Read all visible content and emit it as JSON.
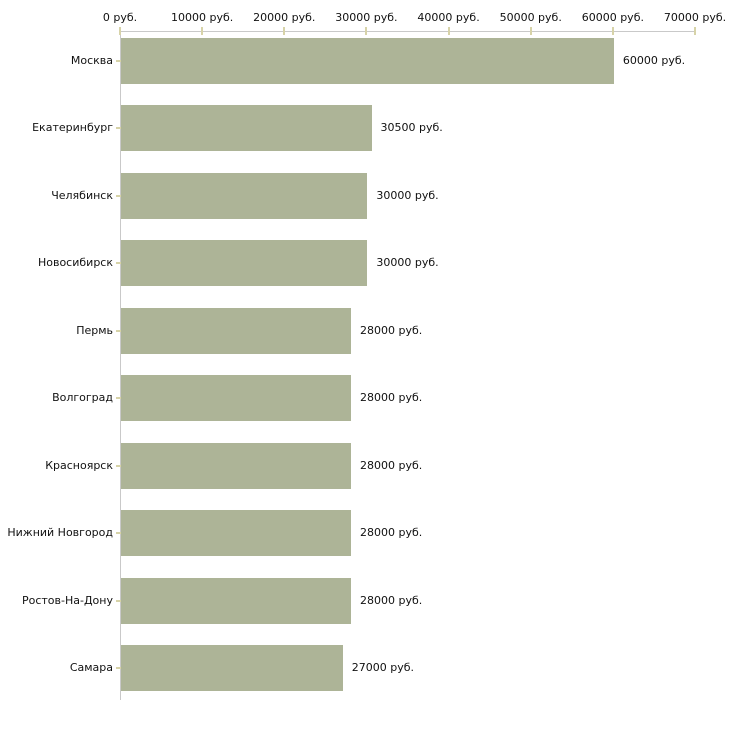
{
  "chart_data": {
    "type": "bar",
    "orientation": "horizontal",
    "title": "",
    "xlabel": "",
    "ylabel": "",
    "categories": [
      "Москва",
      "Екатеринбург",
      "Челябинск",
      "Новосибирск",
      "Пермь",
      "Волгоград",
      "Красноярск",
      "Нижний Новгород",
      "Ростов-На-Дону",
      "Самара"
    ],
    "values": [
      60000,
      30500,
      30000,
      30000,
      28000,
      28000,
      28000,
      28000,
      28000,
      27000
    ],
    "value_labels": [
      "60000 руб.",
      "30500 руб.",
      "30000 руб.",
      "30000 руб.",
      "28000 руб.",
      "28000 руб.",
      "28000 руб.",
      "28000 руб.",
      "28000 руб.",
      "27000 руб."
    ],
    "x_ticks": [
      0,
      10000,
      20000,
      30000,
      40000,
      50000,
      60000,
      70000
    ],
    "x_tick_labels": [
      "0 руб.",
      "10000 руб.",
      "20000 руб.",
      "30000 руб.",
      "40000 руб.",
      "50000 руб.",
      "60000 руб.",
      "70000 руб."
    ],
    "xlim": [
      0,
      70000
    ],
    "x_axis_position": "top",
    "grid": false,
    "legend": false,
    "colors": {
      "bar_fill": "#adb497",
      "axis_line": "#c9c9c9",
      "tick_mark": "#d7d3a8",
      "text": "#111111",
      "background": "#ffffff"
    }
  }
}
